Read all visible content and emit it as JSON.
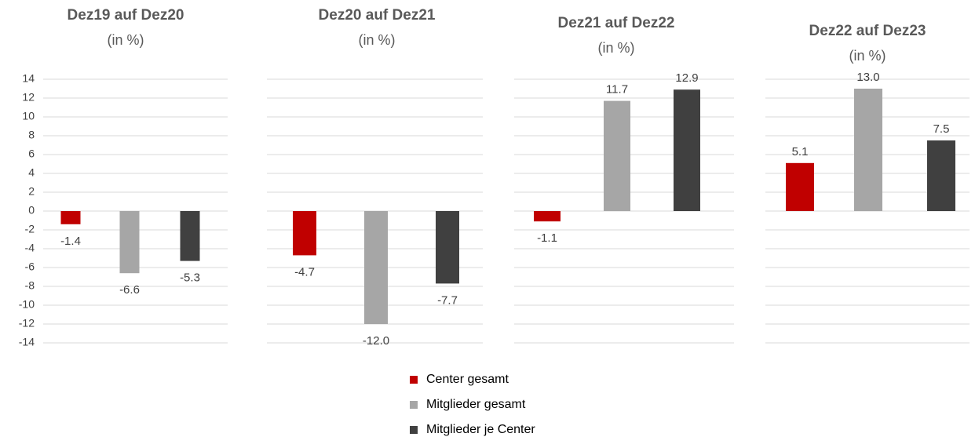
{
  "chart_data": {
    "type": "bar",
    "categories": [
      "Dez19 auf Dez20",
      "Dez20 auf Dez21",
      "Dez21 auf Dez22",
      "Dez22 auf Dez23"
    ],
    "subtitle": "(in %)",
    "series": [
      {
        "name": "Center gesamt",
        "color": "#c00000",
        "values": [
          -1.4,
          -4.7,
          -1.1,
          5.1
        ],
        "value_labels": [
          "-1.4",
          "-4.7",
          "-1.1",
          "5.1"
        ]
      },
      {
        "name": "Mitglieder gesamt",
        "color": "#a6a6a6",
        "values": [
          -6.6,
          -12,
          11.7,
          13
        ],
        "value_labels": [
          "-6.6",
          "-12.0",
          "11.7",
          "13.0"
        ]
      },
      {
        "name": "Mitglieder je Center",
        "color": "#404040",
        "values": [
          -5.3,
          -7.7,
          12.9,
          7.5
        ],
        "value_labels": [
          "-5.3",
          "-7.7",
          "12.9",
          "7.5"
        ]
      }
    ],
    "ylim": [
      -14,
      14
    ],
    "yticks": [
      -14,
      -12,
      -10,
      -8,
      -6,
      -4,
      -2,
      0,
      2,
      4,
      6,
      8,
      10,
      12,
      14
    ],
    "grid": true
  }
}
